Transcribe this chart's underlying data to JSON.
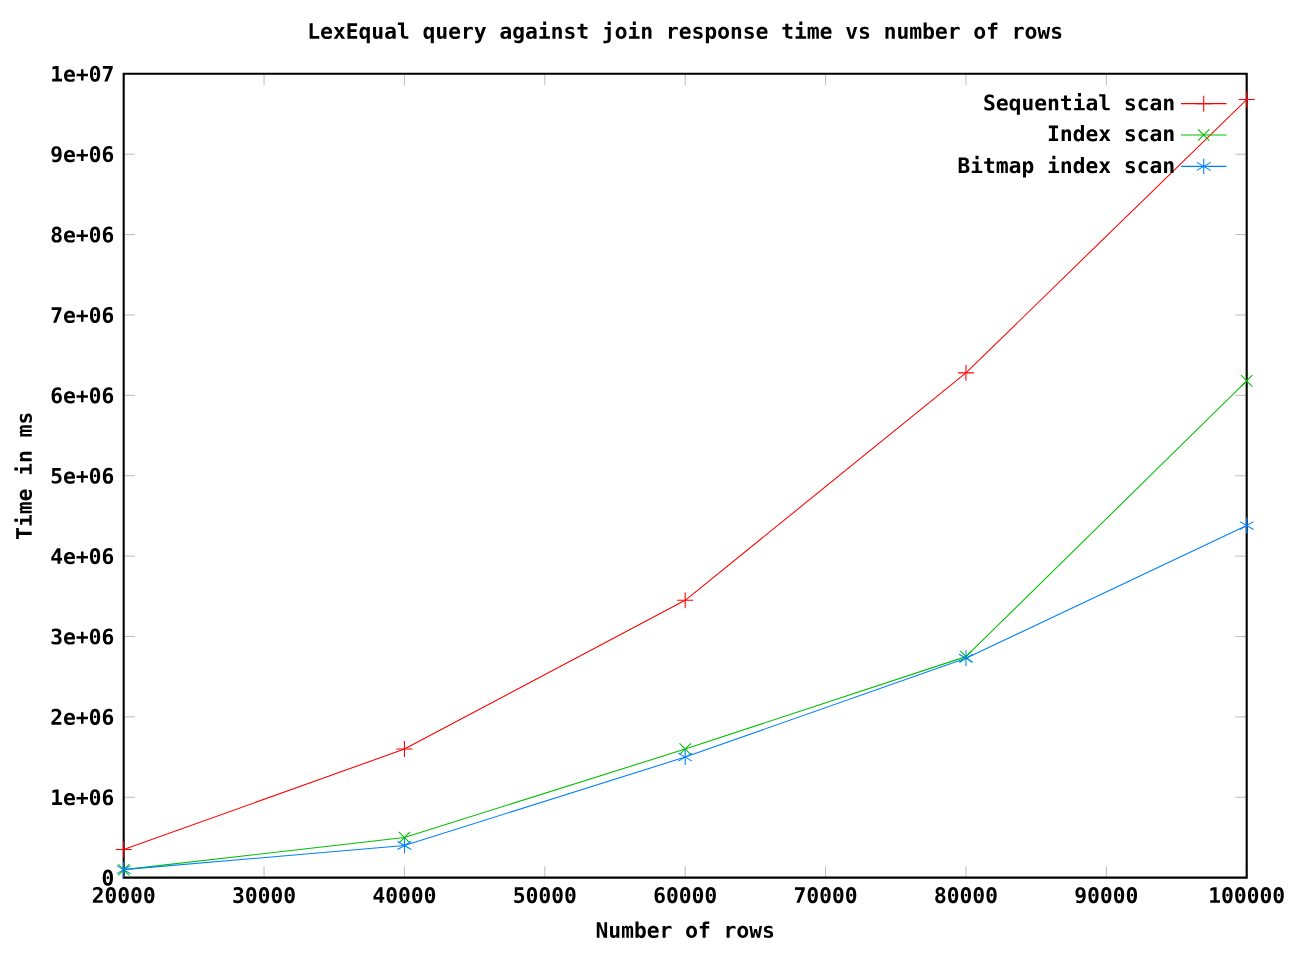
{
  "chart_data": {
    "type": "line",
    "title": "LexEqual query against join response time vs number of rows",
    "xlabel": "Number of rows",
    "ylabel": "Time in ms",
    "x": [
      20000,
      40000,
      60000,
      80000,
      100000
    ],
    "series": [
      {
        "name": "Sequential scan",
        "color": "#ff0000",
        "marker": "cross",
        "values": [
          350000,
          1600000,
          3450000,
          6280000,
          9680000
        ]
      },
      {
        "name": "Index scan",
        "color": "#00c000",
        "marker": "cross",
        "values": [
          100000,
          500000,
          1600000,
          2750000,
          6180000
        ]
      },
      {
        "name": "Bitmap index scan",
        "color": "#0080ff",
        "marker": "cross",
        "values": [
          100000,
          400000,
          1500000,
          2730000,
          4380000
        ]
      }
    ],
    "xlim": [
      20000,
      100000
    ],
    "ylim": [
      0,
      10000000
    ],
    "xticks": [
      20000,
      30000,
      40000,
      50000,
      60000,
      70000,
      80000,
      90000,
      100000
    ],
    "yticks": [
      0,
      {
        "value": 1000000,
        "label": "1e+06"
      },
      {
        "value": 2000000,
        "label": "2e+06"
      },
      {
        "value": 3000000,
        "label": "3e+06"
      },
      {
        "value": 4000000,
        "label": "4e+06"
      },
      {
        "value": 5000000,
        "label": "5e+06"
      },
      {
        "value": 6000000,
        "label": "6e+06"
      },
      {
        "value": 7000000,
        "label": "7e+06"
      },
      {
        "value": 8000000,
        "label": "8e+06"
      },
      {
        "value": 9000000,
        "label": "9e+06"
      },
      {
        "value": 10000000,
        "label": "1e+07"
      }
    ],
    "legend": "top right",
    "line_style": "solid"
  }
}
